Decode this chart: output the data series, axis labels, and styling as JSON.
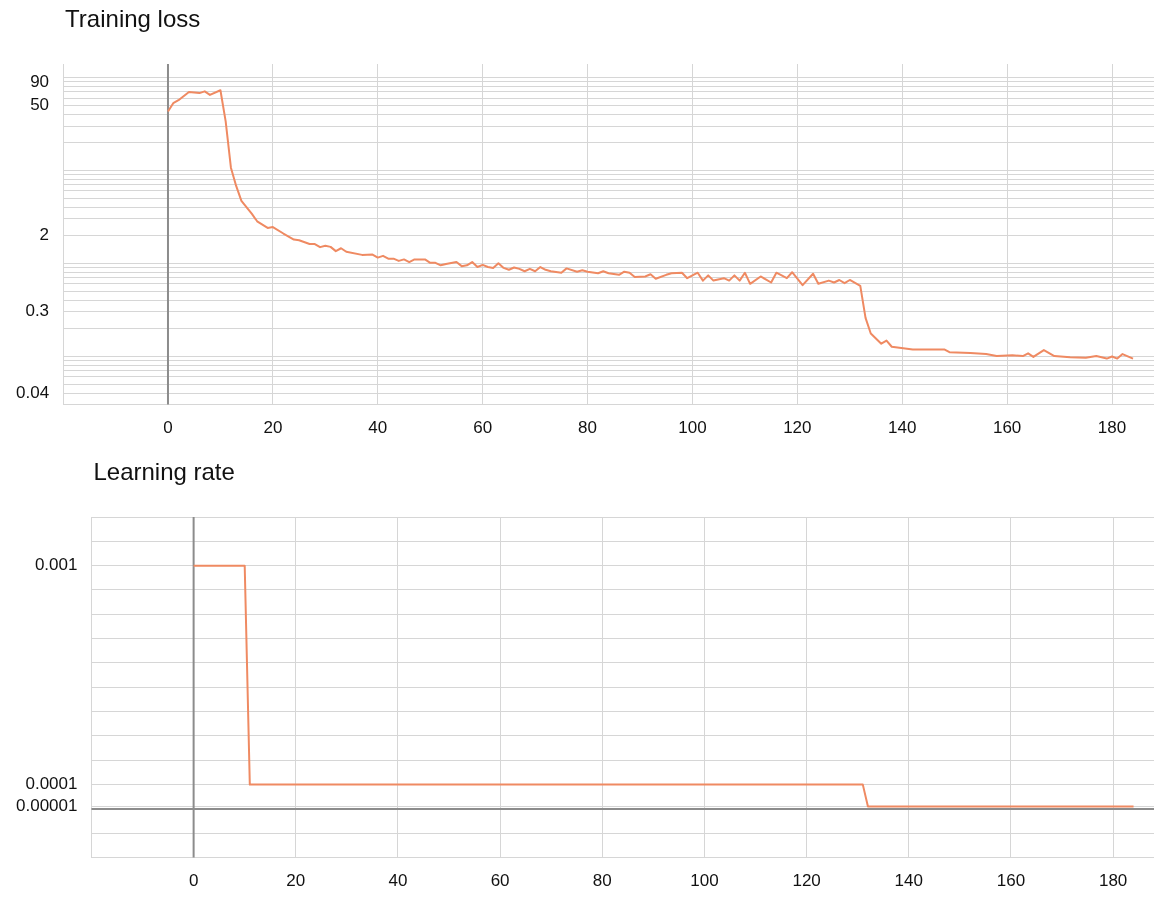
{
  "chart_data": [
    {
      "type": "line",
      "title": "Training loss",
      "log": "y",
      "grid": true,
      "legend": false,
      "marker": "none",
      "xlim": [
        -20,
        188
      ],
      "xticks": [
        {
          "value": -20,
          "label": null
        },
        0,
        20,
        40,
        60,
        80,
        100,
        120,
        140,
        160,
        180
      ],
      "ylim": [
        0.03,
        140
      ],
      "yticks": [
        {
          "value": 0.03,
          "label": null
        },
        0.04,
        {
          "value": 0.05,
          "label": null
        },
        {
          "value": 0.06,
          "label": null
        },
        {
          "value": 0.07,
          "label": null
        },
        {
          "value": 0.08,
          "label": null
        },
        {
          "value": 0.09,
          "label": null
        },
        {
          "value": 0.1,
          "label": null
        },
        {
          "value": 0.2,
          "label": null
        },
        0.3,
        {
          "value": 0.4,
          "label": null
        },
        {
          "value": 0.5,
          "label": null
        },
        {
          "value": 0.6,
          "label": null
        },
        {
          "value": 0.7,
          "label": null
        },
        {
          "value": 0.8,
          "label": null
        },
        {
          "value": 0.9,
          "label": null
        },
        {
          "value": 1,
          "label": null
        },
        2,
        {
          "value": 3,
          "label": null
        },
        {
          "value": 4,
          "label": null
        },
        {
          "value": 5,
          "label": null
        },
        {
          "value": 6,
          "label": null
        },
        {
          "value": 7,
          "label": null
        },
        {
          "value": 8,
          "label": null
        },
        {
          "value": 9,
          "label": null
        },
        {
          "value": 10,
          "label": null
        },
        {
          "value": 20,
          "label": null
        },
        {
          "value": 30,
          "label": null
        },
        {
          "value": 40,
          "label": null
        },
        50,
        {
          "value": 60,
          "label": null
        },
        {
          "value": 70,
          "label": null
        },
        {
          "value": 80,
          "label": null
        },
        90,
        {
          "value": 100,
          "label": null
        }
      ],
      "ref_lines": [
        {
          "axis": "x",
          "value": 0,
          "color": "#8c8c8c"
        }
      ],
      "series": [
        {
          "color": "#ef8a62",
          "x": [
            0,
            1,
            2,
            4,
            6,
            7,
            8,
            10,
            11,
            12,
            13,
            14,
            16,
            17,
            19,
            20,
            22,
            24,
            25,
            27,
            28,
            29,
            30,
            31,
            32,
            33,
            34,
            37,
            39,
            40,
            41,
            42,
            43,
            44,
            45,
            46,
            47,
            49,
            50,
            51,
            52,
            53,
            55,
            56,
            57,
            58,
            59,
            60,
            61,
            62,
            63,
            64,
            65,
            66,
            67,
            68,
            69,
            70,
            71,
            72,
            73,
            75,
            76,
            78,
            79,
            80,
            82,
            83,
            84,
            86,
            87,
            88,
            89,
            91,
            92,
            93,
            95,
            96,
            98,
            99,
            101,
            102,
            103,
            104,
            106,
            107,
            108,
            109,
            110,
            111,
            113,
            115,
            116,
            118,
            119,
            121,
            123,
            124,
            126,
            127,
            128,
            129,
            130,
            132,
            133,
            134,
            136,
            137,
            138,
            142,
            145,
            148,
            149,
            153,
            156,
            158,
            161,
            163,
            164,
            165,
            167,
            169,
            172,
            175,
            177,
            179,
            180,
            181,
            182,
            184
          ],
          "values": [
            43,
            53,
            57,
            70,
            68,
            71,
            65,
            73,
            33.7,
            10.7,
            6.8,
            4.7,
            3.4,
            2.83,
            2.4,
            2.45,
            2.09,
            1.8,
            1.77,
            1.61,
            1.61,
            1.49,
            1.54,
            1.5,
            1.35,
            1.45,
            1.33,
            1.23,
            1.24,
            1.15,
            1.2,
            1.12,
            1.12,
            1.06,
            1.1,
            1.03,
            1.1,
            1.1,
            1.01,
            1.01,
            0.95,
            0.98,
            1.03,
            0.93,
            0.95,
            1.03,
            0.91,
            0.96,
            0.91,
            0.89,
            1.0,
            0.89,
            0.85,
            0.9,
            0.87,
            0.82,
            0.87,
            0.82,
            0.91,
            0.85,
            0.82,
            0.79,
            0.88,
            0.81,
            0.84,
            0.81,
            0.78,
            0.82,
            0.78,
            0.75,
            0.81,
            0.79,
            0.71,
            0.72,
            0.76,
            0.68,
            0.75,
            0.78,
            0.79,
            0.69,
            0.79,
            0.65,
            0.74,
            0.65,
            0.69,
            0.65,
            0.74,
            0.65,
            0.79,
            0.6,
            0.72,
            0.62,
            0.79,
            0.69,
            0.8,
            0.58,
            0.77,
            0.6,
            0.65,
            0.62,
            0.66,
            0.61,
            0.66,
            0.57,
            0.258,
            0.175,
            0.136,
            0.147,
            0.126,
            0.118,
            0.118,
            0.118,
            0.11,
            0.108,
            0.105,
            0.1,
            0.102,
            0.1,
            0.107,
            0.098,
            0.116,
            0.1,
            0.097,
            0.096,
            0.1,
            0.094,
            0.099,
            0.094,
            0.105,
            0.094
          ]
        }
      ]
    },
    {
      "type": "line",
      "title": "Learning rate",
      "grid": true,
      "legend": false,
      "marker": "none",
      "xlim": [
        -20,
        188
      ],
      "xticks": [
        {
          "value": -20,
          "label": null
        },
        0,
        20,
        40,
        60,
        80,
        100,
        120,
        140,
        160,
        180
      ],
      "ylim": [
        -0.0002,
        0.0012
      ],
      "yticks": [
        {
          "value": -0.0002,
          "label": null
        },
        {
          "value": -0.0001,
          "label": null
        },
        {
          "value": 1e-05,
          "label": "0.00001"
        },
        0.0001,
        {
          "value": 0.0002,
          "label": null
        },
        {
          "value": 0.0003,
          "label": null
        },
        {
          "value": 0.0004,
          "label": null
        },
        {
          "value": 0.0005,
          "label": null
        },
        {
          "value": 0.0006,
          "label": null
        },
        {
          "value": 0.0007,
          "label": null
        },
        {
          "value": 0.0008,
          "label": null
        },
        {
          "value": 0.0009,
          "label": null
        },
        0.001,
        {
          "value": 0.0011,
          "label": null
        },
        {
          "value": 0.0012,
          "label": null
        }
      ],
      "ref_lines": [
        {
          "axis": "x",
          "value": 0,
          "color": "#8c8c8c"
        },
        {
          "axis": "y",
          "value": 0,
          "color": "#8c8c8c"
        }
      ],
      "series": [
        {
          "color": "#ef8a62",
          "x": [
            0,
            10,
            11,
            131,
            132,
            184
          ],
          "values": [
            0.001,
            0.001,
            0.0001,
            0.0001,
            1e-05,
            1e-05
          ]
        }
      ]
    }
  ]
}
